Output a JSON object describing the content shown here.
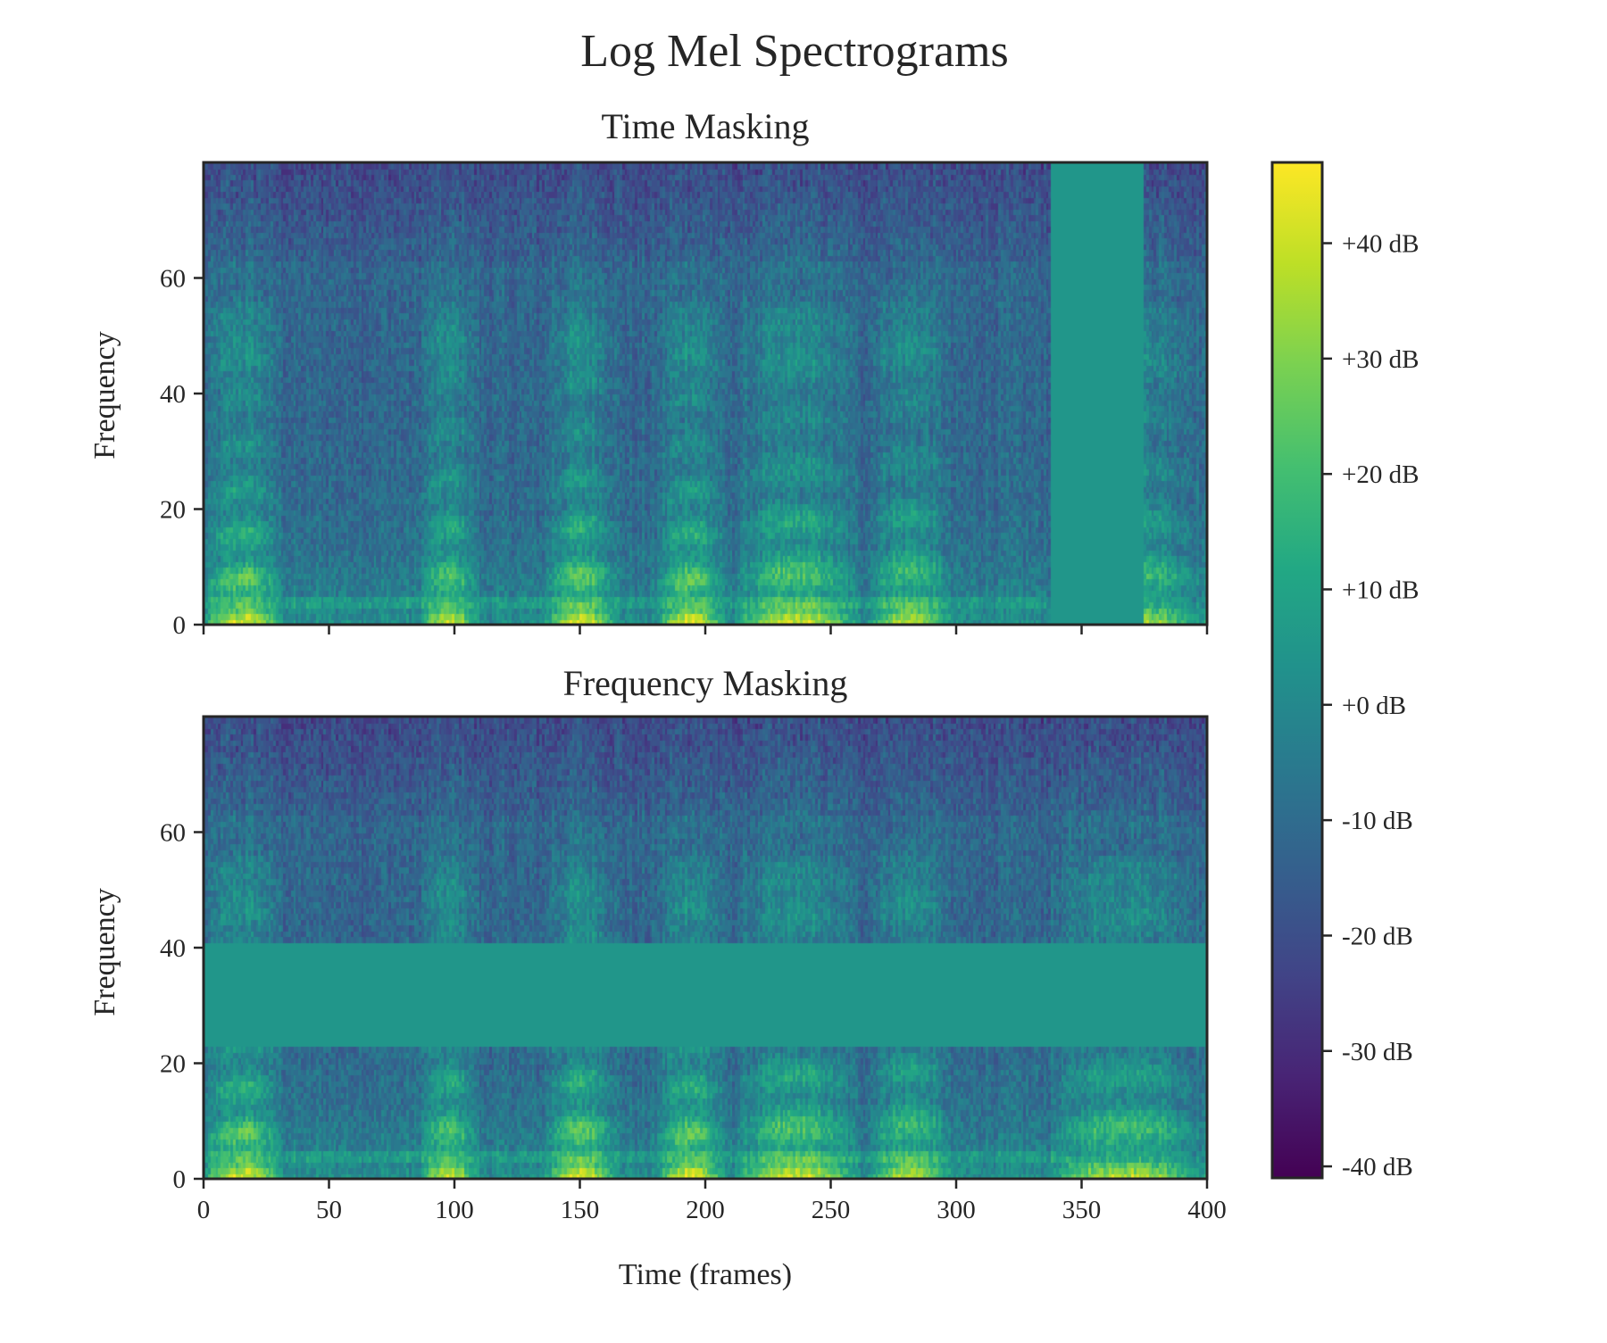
{
  "chart_data": {
    "title": "Log Mel Spectrograms",
    "type": "heatmap",
    "colormap": "viridis",
    "colorbar": {
      "ticks": [
        "+40 dB",
        "+30 dB",
        "+20 dB",
        "+10 dB",
        "+0 dB",
        "-10 dB",
        "-20 dB",
        "-30 dB",
        "-40 dB"
      ],
      "tick_values": [
        40,
        30,
        20,
        10,
        0,
        -10,
        -20,
        -30,
        -40
      ],
      "range": [
        -41,
        47
      ],
      "mask_value": 5
    },
    "panels": [
      {
        "title": "Time Masking",
        "ylabel": "Frequency",
        "xlabel": "",
        "xlim": [
          0,
          400
        ],
        "ylim": [
          0,
          80
        ],
        "xticks": [
          0,
          50,
          100,
          150,
          200,
          250,
          300,
          350,
          400
        ],
        "xticklabels_visible": false,
        "yticks": [
          0,
          20,
          40,
          60
        ],
        "mask": {
          "axis": "time",
          "start": 338,
          "end": 375
        }
      },
      {
        "title": "Frequency Masking",
        "ylabel": "Frequency",
        "xlabel": "Time (frames)",
        "xlim": [
          0,
          400
        ],
        "ylim": [
          0,
          80
        ],
        "xticks": [
          0,
          50,
          100,
          150,
          200,
          250,
          300,
          350,
          400
        ],
        "xticklabels_visible": true,
        "yticks": [
          0,
          20,
          40,
          60
        ],
        "mask": {
          "axis": "frequency",
          "start": 23,
          "end": 41
        }
      }
    ],
    "spectrogram": {
      "frames": 400,
      "mel_bins": 80,
      "voiced_segments": [
        {
          "start": 0,
          "end": 32,
          "f0": 7.0,
          "strength": 40
        },
        {
          "start": 86,
          "end": 110,
          "f0": 7.5,
          "strength": 36
        },
        {
          "start": 136,
          "end": 166,
          "f0": 7.5,
          "strength": 40
        },
        {
          "start": 181,
          "end": 208,
          "f0": 7.0,
          "strength": 42
        },
        {
          "start": 212,
          "end": 262,
          "f0": 8.0,
          "strength": 38
        },
        {
          "start": 265,
          "end": 298,
          "f0": 8.5,
          "strength": 34
        },
        {
          "start": 338,
          "end": 400,
          "f0": 8.0,
          "strength": 36
        }
      ],
      "silence_base": -12,
      "low_freq_boost": 14
    }
  }
}
